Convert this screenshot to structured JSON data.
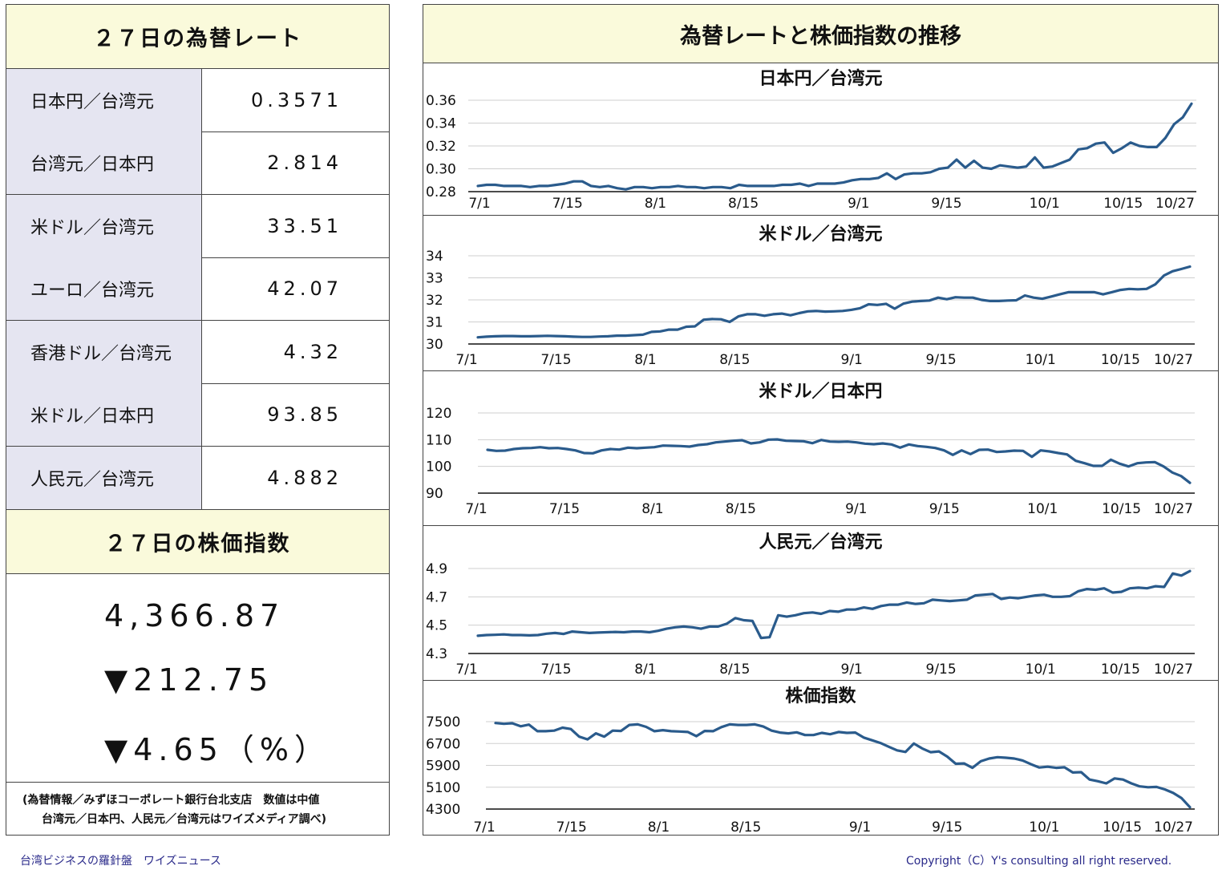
{
  "left": {
    "rates_title": "２７日の為替レート",
    "rates": [
      {
        "label": "日本円／台湾元",
        "value": "0.3571"
      },
      {
        "label": "台湾元／日本円",
        "value": "2.814"
      },
      {
        "label": "米ドル／台湾元",
        "value": "33.51"
      },
      {
        "label": "ユーロ／台湾元",
        "value": "42.07"
      },
      {
        "label": "香港ドル／台湾元",
        "value": "4.32"
      },
      {
        "label": "米ドル／日本円",
        "value": "93.85"
      },
      {
        "label": "人民元／台湾元",
        "value": "4.882"
      }
    ],
    "stock_title": "２７日の株価指数",
    "stock_value": "4,366.87",
    "stock_change": "▼212.75",
    "stock_change_pct": "▼4.65（%）",
    "note_line1": "(為替情報／みずほコーポレート銀行台北支店　数値は中値",
    "note_line2": "台湾元／日本円、人民元／台湾元はワイズメディア調べ)"
  },
  "right": {
    "title": "為替レートと株価指数の推移"
  },
  "footer": {
    "left": "台湾ビジネスの羅針盤　ワイズニュース",
    "right": "Copyright（C）Y's consulting all right reserved."
  },
  "chart_data": [
    {
      "type": "line",
      "title": "日本円／台湾元",
      "x_tick_labels": [
        "7/1",
        "7/15",
        "8/1",
        "8/15",
        "9/1",
        "9/15",
        "10/1",
        "10/15",
        "10/27"
      ],
      "y_ticks": [
        "0.36",
        "0.34",
        "0.32",
        "0.30",
        "0.28"
      ],
      "ylim": [
        0.28,
        0.36
      ],
      "color": "#2a5b8c",
      "values": [
        0.285,
        0.286,
        0.286,
        0.285,
        0.285,
        0.285,
        0.284,
        0.285,
        0.285,
        0.286,
        0.287,
        0.289,
        0.289,
        0.285,
        0.284,
        0.285,
        0.283,
        0.282,
        0.284,
        0.284,
        0.283,
        0.284,
        0.284,
        0.285,
        0.284,
        0.284,
        0.283,
        0.284,
        0.284,
        0.283,
        0.286,
        0.285,
        0.285,
        0.285,
        0.285,
        0.286,
        0.286,
        0.287,
        0.285,
        0.287,
        0.287,
        0.287,
        0.288,
        0.29,
        0.291,
        0.291,
        0.292,
        0.296,
        0.291,
        0.295,
        0.296,
        0.296,
        0.297,
        0.3,
        0.301,
        0.308,
        0.301,
        0.307,
        0.301,
        0.3,
        0.303,
        0.302,
        0.301,
        0.302,
        0.31,
        0.301,
        0.302,
        0.305,
        0.308,
        0.317,
        0.318,
        0.322,
        0.323,
        0.314,
        0.318,
        0.323,
        0.32,
        0.319,
        0.319,
        0.327,
        0.339,
        0.345,
        0.357
      ]
    },
    {
      "type": "line",
      "title": "米ドル／台湾元",
      "x_tick_labels": [
        "7/1",
        "7/15",
        "8/1",
        "8/15",
        "9/1",
        "9/15",
        "10/1",
        "10/15",
        "10/27"
      ],
      "y_ticks": [
        "34",
        "33",
        "32",
        "31",
        "30"
      ],
      "ylim": [
        30,
        34
      ],
      "color": "#2a5b8c",
      "values": [
        30.3,
        30.33,
        30.35,
        30.36,
        30.36,
        30.35,
        30.35,
        30.36,
        30.37,
        30.36,
        30.35,
        30.33,
        30.32,
        30.32,
        30.34,
        30.35,
        30.38,
        30.38,
        30.4,
        30.42,
        30.55,
        30.57,
        30.65,
        30.65,
        30.78,
        30.8,
        31.1,
        31.13,
        31.12,
        31.0,
        31.25,
        31.35,
        31.35,
        31.28,
        31.35,
        31.38,
        31.3,
        31.4,
        31.48,
        31.5,
        31.47,
        31.48,
        31.5,
        31.55,
        31.62,
        31.8,
        31.77,
        31.82,
        31.6,
        31.83,
        31.92,
        31.95,
        31.97,
        32.1,
        32.03,
        32.12,
        32.1,
        32.1,
        32.0,
        31.95,
        31.95,
        31.97,
        31.98,
        32.2,
        32.1,
        32.05,
        32.15,
        32.25,
        32.35,
        32.35,
        32.35,
        32.35,
        32.25,
        32.35,
        32.45,
        32.5,
        32.48,
        32.5,
        32.7,
        33.1,
        33.3,
        33.4,
        33.51
      ]
    },
    {
      "type": "line",
      "title": "米ドル／日本円",
      "x_tick_labels": [
        "7/1",
        "7/15",
        "8/1",
        "8/15",
        "9/1",
        "9/15",
        "10/1",
        "10/15",
        "10/27"
      ],
      "y_ticks": [
        "120",
        "110",
        "100",
        "90"
      ],
      "ylim": [
        90,
        120
      ],
      "color": "#2a5b8c",
      "values": [
        106.2,
        105.8,
        105.9,
        106.5,
        106.8,
        106.9,
        107.2,
        106.8,
        106.9,
        106.5,
        106.0,
        105.0,
        104.9,
        106.0,
        106.5,
        106.3,
        107.0,
        106.8,
        107.0,
        107.2,
        107.8,
        107.7,
        107.6,
        107.4,
        108.0,
        108.3,
        109.0,
        109.3,
        109.6,
        109.8,
        108.6,
        109.0,
        110.0,
        110.1,
        109.6,
        109.5,
        109.4,
        108.7,
        109.9,
        109.3,
        109.2,
        109.3,
        109.0,
        108.5,
        108.3,
        108.6,
        108.2,
        107.0,
        108.2,
        107.6,
        107.3,
        106.9,
        106.0,
        104.3,
        106.0,
        104.6,
        106.2,
        106.3,
        105.4,
        105.6,
        105.9,
        105.8,
        103.6,
        106.0,
        105.6,
        105.0,
        104.5,
        102.1,
        101.2,
        100.2,
        100.2,
        102.5,
        101.0,
        100.0,
        101.2,
        101.5,
        101.6,
        100.0,
        97.7,
        96.4,
        93.85
      ]
    },
    {
      "type": "line",
      "title": "人民元／台湾元",
      "x_tick_labels": [
        "7/1",
        "7/15",
        "8/1",
        "8/15",
        "9/1",
        "9/15",
        "10/1",
        "10/15",
        "10/27"
      ],
      "y_ticks": [
        "4.9",
        "4.7",
        "4.5",
        "4.3"
      ],
      "ylim": [
        4.3,
        4.9
      ],
      "color": "#2a5b8c",
      "values": [
        4.425,
        4.43,
        4.432,
        4.435,
        4.43,
        4.43,
        4.428,
        4.43,
        4.44,
        4.445,
        4.438,
        4.455,
        4.45,
        4.445,
        4.448,
        4.45,
        4.452,
        4.45,
        4.455,
        4.455,
        4.45,
        4.46,
        4.475,
        4.485,
        4.49,
        4.485,
        4.475,
        4.49,
        4.49,
        4.51,
        4.55,
        4.535,
        4.53,
        4.41,
        4.415,
        4.57,
        4.56,
        4.57,
        4.585,
        4.59,
        4.58,
        4.6,
        4.595,
        4.61,
        4.61,
        4.625,
        4.615,
        4.635,
        4.645,
        4.645,
        4.66,
        4.65,
        4.655,
        4.68,
        4.675,
        4.67,
        4.675,
        4.68,
        4.71,
        4.715,
        4.72,
        4.685,
        4.695,
        4.69,
        4.7,
        4.71,
        4.715,
        4.7,
        4.7,
        4.705,
        4.74,
        4.755,
        4.75,
        4.76,
        4.73,
        4.735,
        4.76,
        4.765,
        4.76,
        4.775,
        4.77,
        4.865,
        4.85,
        4.882
      ]
    },
    {
      "type": "line",
      "title": "株価指数",
      "x_tick_labels": [
        "7/1",
        "7/15",
        "8/1",
        "8/15",
        "9/1",
        "9/15",
        "10/1",
        "10/15",
        "10/27"
      ],
      "y_ticks": [
        "7500",
        "6700",
        "5900",
        "5100",
        "4300"
      ],
      "ylim": [
        4300,
        7500
      ],
      "color": "#2a5b8c",
      "values": [
        7450,
        7420,
        7440,
        7330,
        7390,
        7150,
        7150,
        7170,
        7280,
        7230,
        6950,
        6850,
        7070,
        6950,
        7170,
        7160,
        7380,
        7400,
        7310,
        7150,
        7190,
        7150,
        7140,
        7120,
        6970,
        7160,
        7150,
        7300,
        7400,
        7380,
        7380,
        7400,
        7320,
        7170,
        7100,
        7070,
        7110,
        7010,
        7010,
        7090,
        7040,
        7120,
        7090,
        7100,
        6920,
        6820,
        6720,
        6580,
        6450,
        6390,
        6700,
        6520,
        6380,
        6410,
        6220,
        5960,
        5970,
        5810,
        6050,
        6150,
        6200,
        6180,
        6150,
        6080,
        5940,
        5820,
        5850,
        5810,
        5830,
        5640,
        5650,
        5380,
        5320,
        5240,
        5420,
        5380,
        5240,
        5130,
        5100,
        5110,
        5020,
        4890,
        4700,
        4366.87
      ]
    }
  ]
}
